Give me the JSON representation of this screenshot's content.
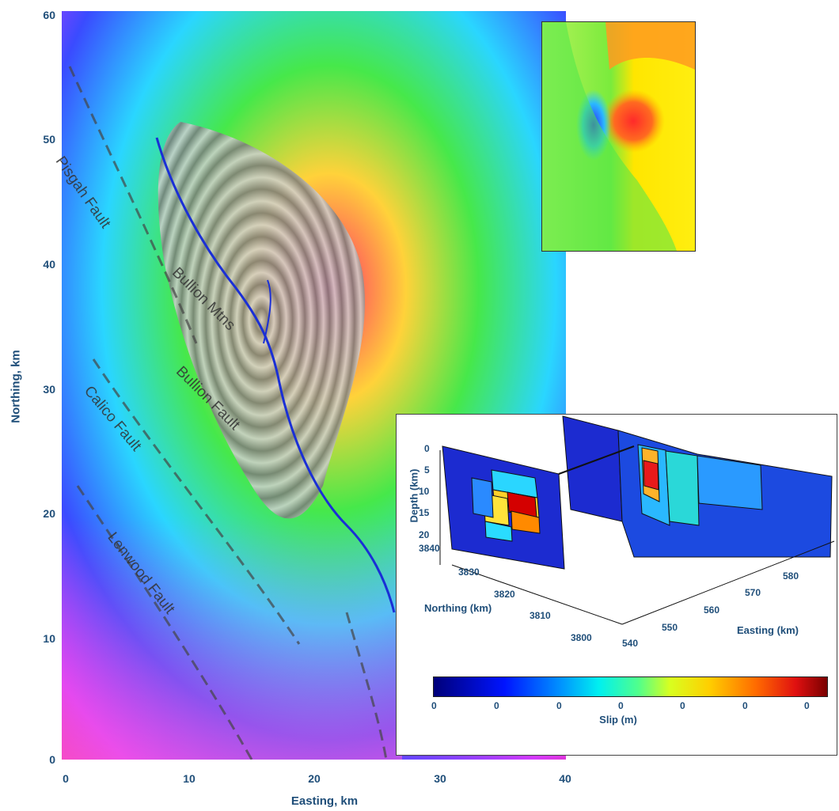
{
  "map": {
    "x_axis_title": "Easting, km",
    "y_axis_title": "Northing, km",
    "x_ticks": [
      "0",
      "10",
      "20",
      "30",
      "40"
    ],
    "y_ticks": [
      "60",
      "50",
      "40",
      "30",
      "20",
      "10",
      "0"
    ],
    "fault_labels": [
      "Pisgah Fault",
      "Bullion Mtns",
      "Bullion Fault",
      "Calico Fault",
      "Lenwood Fault"
    ]
  },
  "model": {
    "depth_title": "Depth (km)",
    "depth_ticks": [
      "0",
      "5",
      "10",
      "15",
      "20"
    ],
    "northing_title": "Northing (km)",
    "northing_ticks": [
      "3840",
      "3830",
      "3820",
      "3810",
      "3800"
    ],
    "easting_title": "Easting (km)",
    "easting_ticks": [
      "540",
      "550",
      "560",
      "570",
      "580"
    ]
  },
  "colorbar": {
    "title": "Slip (m)",
    "ticks": [
      "0",
      "0",
      "0",
      "0",
      "0",
      "0",
      "0"
    ]
  },
  "colors": {
    "axis_text": "#1f4e79",
    "fault_trace": "#1a2fd6"
  }
}
